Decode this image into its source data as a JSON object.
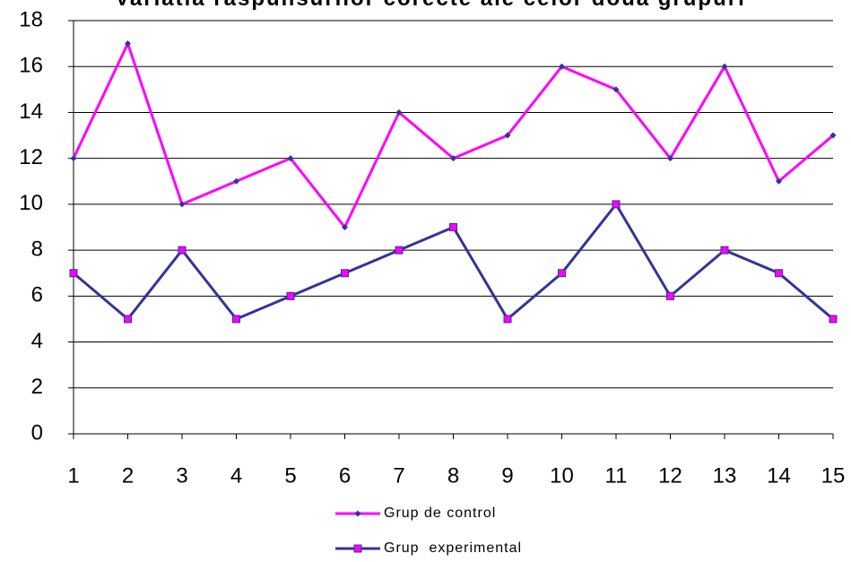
{
  "chart_data": {
    "type": "line",
    "title": "Variatia raspunsurilor corecte ale celor doua grupuri",
    "x": [
      1,
      2,
      3,
      4,
      5,
      6,
      7,
      8,
      9,
      10,
      11,
      12,
      13,
      14,
      15
    ],
    "xlim": [
      1,
      15
    ],
    "xticks": [
      1,
      2,
      3,
      4,
      5,
      6,
      7,
      8,
      9,
      10,
      11,
      12,
      13,
      14,
      15
    ],
    "ylim": [
      0,
      18
    ],
    "yticks": [
      0,
      2,
      4,
      6,
      8,
      10,
      12,
      14,
      16,
      18
    ],
    "grid": true,
    "legend": "bottom",
    "series": [
      {
        "name": "Grup de control",
        "color": "#ff00ff",
        "marker": "diamond",
        "marker_color": "#333399",
        "values": [
          12,
          17,
          10,
          11,
          12,
          9,
          14,
          12,
          13,
          16,
          15,
          12,
          16,
          11,
          13
        ]
      },
      {
        "name": "Grup  experimental",
        "color": "#333399",
        "marker": "square",
        "marker_color": "#ff00ff",
        "values": [
          7,
          5,
          8,
          5,
          6,
          7,
          8,
          9,
          5,
          7,
          10,
          6,
          8,
          7,
          5
        ]
      }
    ]
  }
}
